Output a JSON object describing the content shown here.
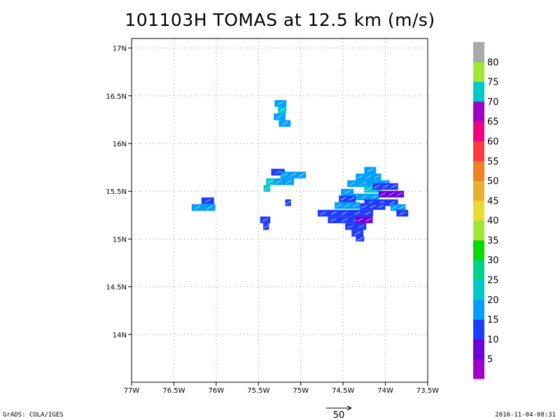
{
  "title": "101103H TOMAS at 12.5 km (m/s)",
  "footer": {
    "left": "GrADS: COLA/IGES",
    "right": "2010-11-04-08:31"
  },
  "reference_vector": {
    "label": "50"
  },
  "chart_data": {
    "type": "heatmap",
    "title": "101103H TOMAS at 12.5 km (m/s)",
    "xlim": [
      -77,
      -73.5
    ],
    "ylim": [
      13.5,
      17.1
    ],
    "x_ticks": [
      -77,
      -76.5,
      -76,
      -75.5,
      -75,
      -74.5,
      -74,
      -73.5
    ],
    "x_tick_labels": [
      "77W",
      "76.5W",
      "76W",
      "75.5W",
      "75W",
      "74.5W",
      "74W",
      "73.5W"
    ],
    "y_ticks": [
      14,
      14.5,
      15,
      15.5,
      16,
      16.5,
      17
    ],
    "y_tick_labels": [
      "14N",
      "14.5N",
      "15N",
      "15.5N",
      "16N",
      "16.5N",
      "17N"
    ],
    "grid": true,
    "colorbar": {
      "labels": [
        "5",
        "10",
        "15",
        "20",
        "25",
        "30",
        "35",
        "40",
        "45",
        "50",
        "55",
        "60",
        "65",
        "70",
        "75",
        "80"
      ],
      "colors": [
        "#a000c8",
        "#6e00dc",
        "#1e3cff",
        "#00a0ff",
        "#00c8c8",
        "#00d28c",
        "#00dc00",
        "#a0e632",
        "#e6dc32",
        "#e6af2d",
        "#f08228",
        "#fa3c3c",
        "#f00082",
        "#a000c8",
        "#00c8c8",
        "#a0e632",
        "#aaaaaa"
      ]
    },
    "cells": [
      {
        "lon": -75.24,
        "lat": 16.42,
        "w": 0.14,
        "h": 0.07,
        "v": 15
      },
      {
        "lon": -75.22,
        "lat": 16.35,
        "w": 0.1,
        "h": 0.07,
        "v": 20
      },
      {
        "lon": -75.25,
        "lat": 16.28,
        "w": 0.14,
        "h": 0.07,
        "v": 15
      },
      {
        "lon": -75.19,
        "lat": 16.21,
        "w": 0.14,
        "h": 0.07,
        "v": 15
      },
      {
        "lon": -75.27,
        "lat": 15.7,
        "w": 0.16,
        "h": 0.07,
        "v": 10
      },
      {
        "lon": -75.09,
        "lat": 15.67,
        "w": 0.3,
        "h": 0.07,
        "v": 15
      },
      {
        "lon": -75.2,
        "lat": 15.6,
        "w": 0.24,
        "h": 0.07,
        "v": 15
      },
      {
        "lon": -75.36,
        "lat": 15.6,
        "w": 0.1,
        "h": 0.07,
        "v": 20
      },
      {
        "lon": -75.4,
        "lat": 15.53,
        "w": 0.08,
        "h": 0.07,
        "v": 20
      },
      {
        "lon": -75.15,
        "lat": 15.38,
        "w": 0.07,
        "h": 0.07,
        "v": 10
      },
      {
        "lon": -76.1,
        "lat": 15.4,
        "w": 0.15,
        "h": 0.07,
        "v": 10
      },
      {
        "lon": -76.15,
        "lat": 15.33,
        "w": 0.28,
        "h": 0.07,
        "v": 15
      },
      {
        "lon": -75.42,
        "lat": 15.2,
        "w": 0.12,
        "h": 0.07,
        "v": 10
      },
      {
        "lon": -75.41,
        "lat": 15.13,
        "w": 0.07,
        "h": 0.07,
        "v": 10
      },
      {
        "lon": -74.18,
        "lat": 15.72,
        "w": 0.14,
        "h": 0.07,
        "v": 15
      },
      {
        "lon": -74.2,
        "lat": 15.65,
        "w": 0.3,
        "h": 0.07,
        "v": 15
      },
      {
        "lon": -74.2,
        "lat": 15.58,
        "w": 0.5,
        "h": 0.07,
        "v": 15
      },
      {
        "lon": -74.15,
        "lat": 15.52,
        "w": 0.2,
        "h": 0.07,
        "v": 20
      },
      {
        "lon": -74.45,
        "lat": 15.49,
        "w": 0.15,
        "h": 0.07,
        "v": 15
      },
      {
        "lon": -74.0,
        "lat": 15.55,
        "w": 0.3,
        "h": 0.07,
        "v": 10
      },
      {
        "lon": -74.25,
        "lat": 15.44,
        "w": 0.35,
        "h": 0.07,
        "v": 15
      },
      {
        "lon": -73.93,
        "lat": 15.47,
        "w": 0.3,
        "h": 0.07,
        "v": 5
      },
      {
        "lon": -74.05,
        "lat": 15.38,
        "w": 0.4,
        "h": 0.07,
        "v": 10
      },
      {
        "lon": -74.45,
        "lat": 15.42,
        "w": 0.2,
        "h": 0.07,
        "v": 10
      },
      {
        "lon": -74.45,
        "lat": 15.35,
        "w": 0.3,
        "h": 0.07,
        "v": 15
      },
      {
        "lon": -74.15,
        "lat": 15.34,
        "w": 0.3,
        "h": 0.07,
        "v": 10
      },
      {
        "lon": -73.85,
        "lat": 15.33,
        "w": 0.18,
        "h": 0.07,
        "v": 15
      },
      {
        "lon": -74.55,
        "lat": 15.27,
        "w": 0.5,
        "h": 0.07,
        "v": 10
      },
      {
        "lon": -74.27,
        "lat": 15.27,
        "w": 0.25,
        "h": 0.07,
        "v": 10
      },
      {
        "lon": -73.8,
        "lat": 15.27,
        "w": 0.14,
        "h": 0.07,
        "v": 10
      },
      {
        "lon": -74.48,
        "lat": 15.2,
        "w": 0.4,
        "h": 0.07,
        "v": 10
      },
      {
        "lon": -74.25,
        "lat": 15.2,
        "w": 0.2,
        "h": 0.07,
        "v": 5
      },
      {
        "lon": -74.35,
        "lat": 15.13,
        "w": 0.25,
        "h": 0.07,
        "v": 10
      },
      {
        "lon": -74.33,
        "lat": 15.06,
        "w": 0.14,
        "h": 0.07,
        "v": 10
      },
      {
        "lon": -74.3,
        "lat": 15.0,
        "w": 0.1,
        "h": 0.05,
        "v": 10
      }
    ]
  }
}
